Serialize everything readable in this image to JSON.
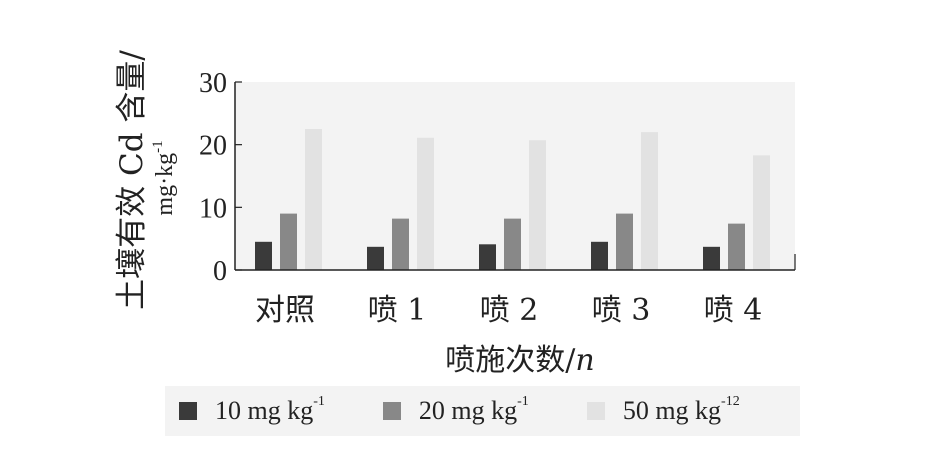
{
  "chart_data": {
    "type": "bar",
    "categories": [
      "对照",
      "喷 1",
      "喷 2",
      "喷 3",
      "喷 4"
    ],
    "series": [
      {
        "name_base": "10 mg kg",
        "name_sup": "-1",
        "color": "#3a3a3a",
        "values": [
          4.5,
          3.7,
          4.1,
          4.5,
          3.7
        ]
      },
      {
        "name_base": "20 mg kg",
        "name_sup": "-1",
        "color": "#888888",
        "values": [
          9.0,
          8.2,
          8.2,
          9.0,
          7.4
        ]
      },
      {
        "name_base": "50 mg kg",
        "name_sup": "-12",
        "color": "#e2e2e2",
        "values": [
          22.5,
          21.1,
          20.7,
          22.0,
          18.3
        ]
      }
    ],
    "ylim": [
      0,
      30
    ],
    "yticks": [
      "0",
      "10",
      "20",
      "30"
    ],
    "xlabel_main": "喷施次数/",
    "xlabel_var": "n",
    "ylabel_line1": "土壤有效 Cd 含量/",
    "ylabel_line2_base": "mg·kg",
    "ylabel_line2_sup": "-1",
    "plot_background": "#f3f3f3"
  }
}
